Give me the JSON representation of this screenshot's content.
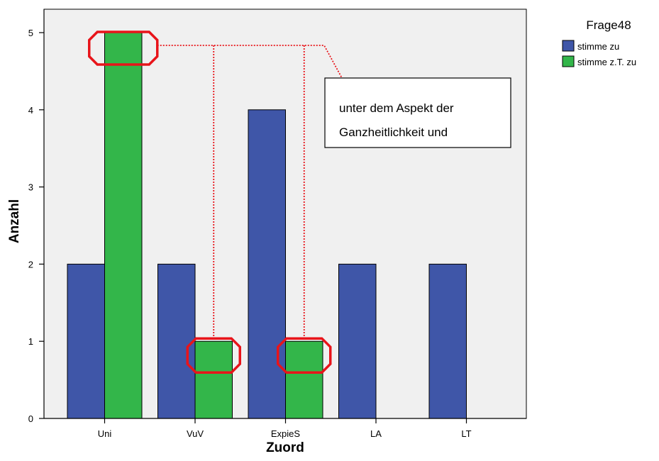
{
  "chart_data": {
    "type": "bar",
    "title": "",
    "xlabel": "Zuord",
    "ylabel": "Anzahl",
    "categories": [
      "Uni",
      "VuV",
      "ExpieS",
      "LA",
      "LT"
    ],
    "ylim": [
      0,
      5.3
    ],
    "yticks": [
      0,
      1,
      2,
      3,
      4,
      5
    ],
    "grid": false,
    "legend": {
      "title": "Frage48",
      "placement": "right"
    },
    "series": [
      {
        "name": "stimme zu",
        "color": "#3f56a8",
        "values": [
          2,
          2,
          4,
          2,
          2
        ]
      },
      {
        "name": "stimme z.T. zu",
        "color": "#33b64a",
        "values": [
          5,
          1,
          1,
          null,
          null
        ]
      }
    ],
    "annotation": {
      "lines": [
        "unter dem Aspekt der",
        "Ganzheitlichkeit und"
      ],
      "highlight_color": "#e8141a",
      "highlighted": [
        {
          "category": "Uni",
          "series": 1
        },
        {
          "category": "VuV",
          "series": 1
        },
        {
          "category": "ExpieS",
          "series": 1
        }
      ]
    }
  }
}
